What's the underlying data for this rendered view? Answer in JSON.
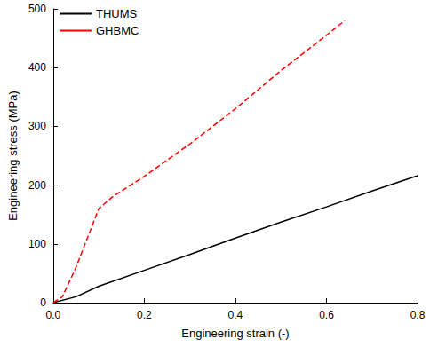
{
  "chart_data": {
    "type": "line",
    "x_label": "Engineering strain (-)",
    "y_label": "Engineering stress (MPa)",
    "xlim": [
      0,
      0.8
    ],
    "xticks": [
      {
        "value": 0,
        "label": "0.0"
      },
      0.2,
      0.4,
      0.6,
      0.8
    ],
    "ylim": [
      0,
      500
    ],
    "yticks": [
      0,
      100,
      200,
      300,
      400,
      500
    ],
    "grid": false,
    "legend": "upper left",
    "series": [
      {
        "name": "THUMS",
        "color": "#000000",
        "line_style": "solid",
        "x": [
          0,
          0.05,
          0.1,
          0.2,
          0.3,
          0.4,
          0.5,
          0.6,
          0.7,
          0.8
        ],
        "values": [
          0,
          10,
          28,
          55,
          82,
          110,
          137,
          163,
          190,
          216
        ]
      },
      {
        "name": "GHBMC",
        "color": "#ff0000",
        "line_style": "dashed",
        "x": [
          0,
          0.02,
          0.05,
          0.08,
          0.1,
          0.13,
          0.2,
          0.3,
          0.4,
          0.5,
          0.6,
          0.64
        ],
        "values": [
          0,
          10,
          60,
          120,
          160,
          180,
          215,
          270,
          330,
          395,
          455,
          480
        ]
      }
    ]
  }
}
